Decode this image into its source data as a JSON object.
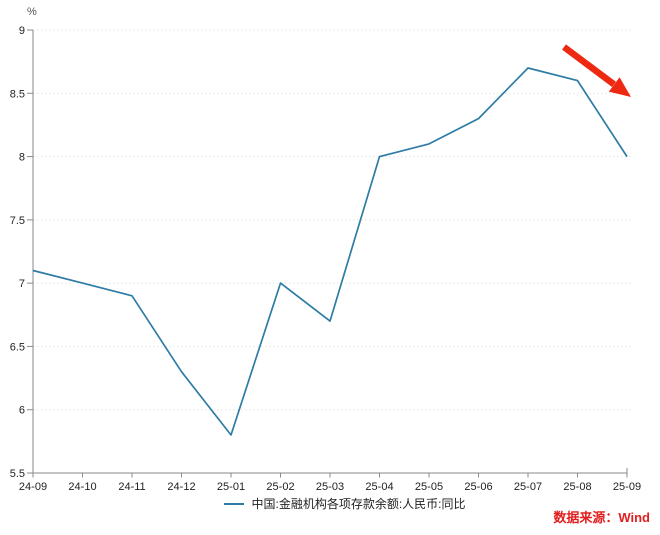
{
  "chart_data": {
    "type": "line",
    "title": "",
    "ylabel_unit": "%",
    "categories": [
      "24-09",
      "24-10",
      "24-11",
      "24-12",
      "25-01",
      "25-02",
      "25-03",
      "25-04",
      "25-05",
      "25-06",
      "25-07",
      "25-08",
      "25-09"
    ],
    "series": [
      {
        "name": "中国:金融机构各项存款余额:人民币:同比",
        "color": "#2e7ca5",
        "values": [
          7.1,
          7.0,
          6.9,
          6.3,
          5.8,
          7.0,
          6.7,
          8.0,
          8.1,
          8.3,
          8.7,
          8.6,
          8.0
        ]
      }
    ],
    "ylim": [
      5.5,
      9
    ],
    "ytick_values": [
      5.5,
      6,
      6.5,
      7,
      7.5,
      8,
      8.5,
      9
    ],
    "ytick_labels": [
      "5.5",
      "6",
      "6.5",
      "7",
      "7.5",
      "8",
      "8.5",
      "9"
    ],
    "grid": "dotted-horizontal",
    "legend_position": "bottom-center"
  },
  "annotation": {
    "name": "down-trend-arrow",
    "color": "#ee2912"
  },
  "source": {
    "text": "数据来源：Wind",
    "color": "#e01f1f"
  },
  "colors": {
    "axis": "#8a8a8a",
    "grid": "#e3e3e3",
    "tick_text": "#222222",
    "unit_text": "#555555"
  }
}
